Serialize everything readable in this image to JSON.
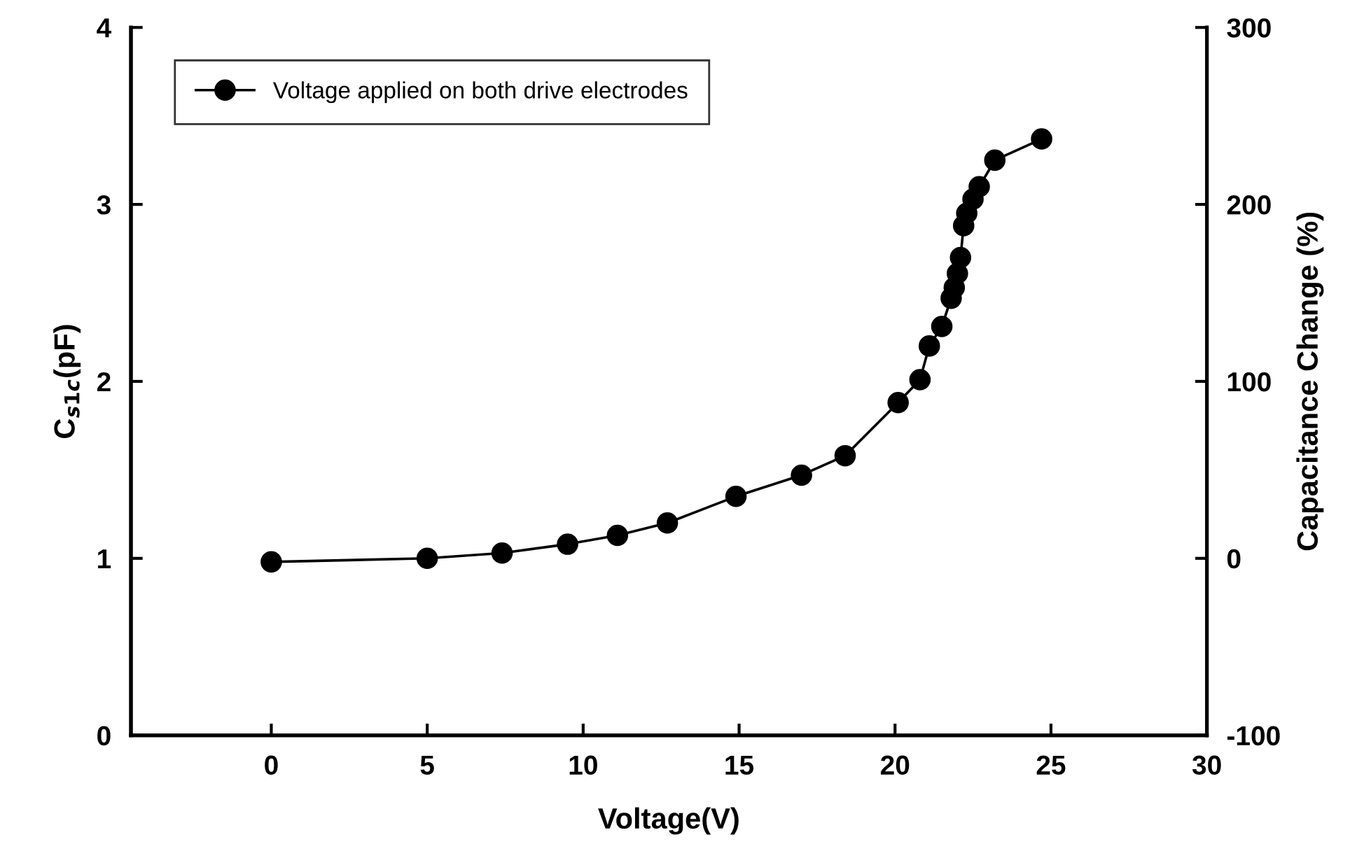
{
  "chart_data": {
    "type": "line",
    "xlabel": "Voltage(V)",
    "ylabel": "C$_{s1c}$(pF)",
    "y2label": "Capacitance Change (%)",
    "x": [
      0,
      5.0,
      7.4,
      9.5,
      11.1,
      12.7,
      14.9,
      17.0,
      18.4,
      20.1,
      20.8,
      21.1,
      21.5,
      21.8,
      21.9,
      22.0,
      22.1,
      22.2,
      22.3,
      22.5,
      22.7,
      23.2,
      24.7
    ],
    "series": [
      {
        "name": "Voltage applied on both drive electrodes",
        "color": "#000000",
        "values": [
          0.98,
          1.0,
          1.03,
          1.08,
          1.13,
          1.2,
          1.35,
          1.47,
          1.58,
          1.88,
          2.01,
          2.2,
          2.31,
          2.47,
          2.53,
          2.61,
          2.7,
          2.88,
          2.95,
          3.03,
          3.1,
          3.25,
          3.37
        ]
      }
    ],
    "xlim": [
      -4.5,
      30
    ],
    "xticks": [
      0,
      5,
      10,
      15,
      20,
      25,
      30
    ],
    "ylim": [
      0,
      4
    ],
    "yticks": [
      0,
      1,
      2,
      3,
      4
    ],
    "y2lim": [
      -100,
      300
    ],
    "y2ticks": [
      -100,
      0,
      100,
      200,
      300
    ],
    "marker": "circle",
    "line_style": "solid",
    "grid": false,
    "legend": "top left"
  }
}
